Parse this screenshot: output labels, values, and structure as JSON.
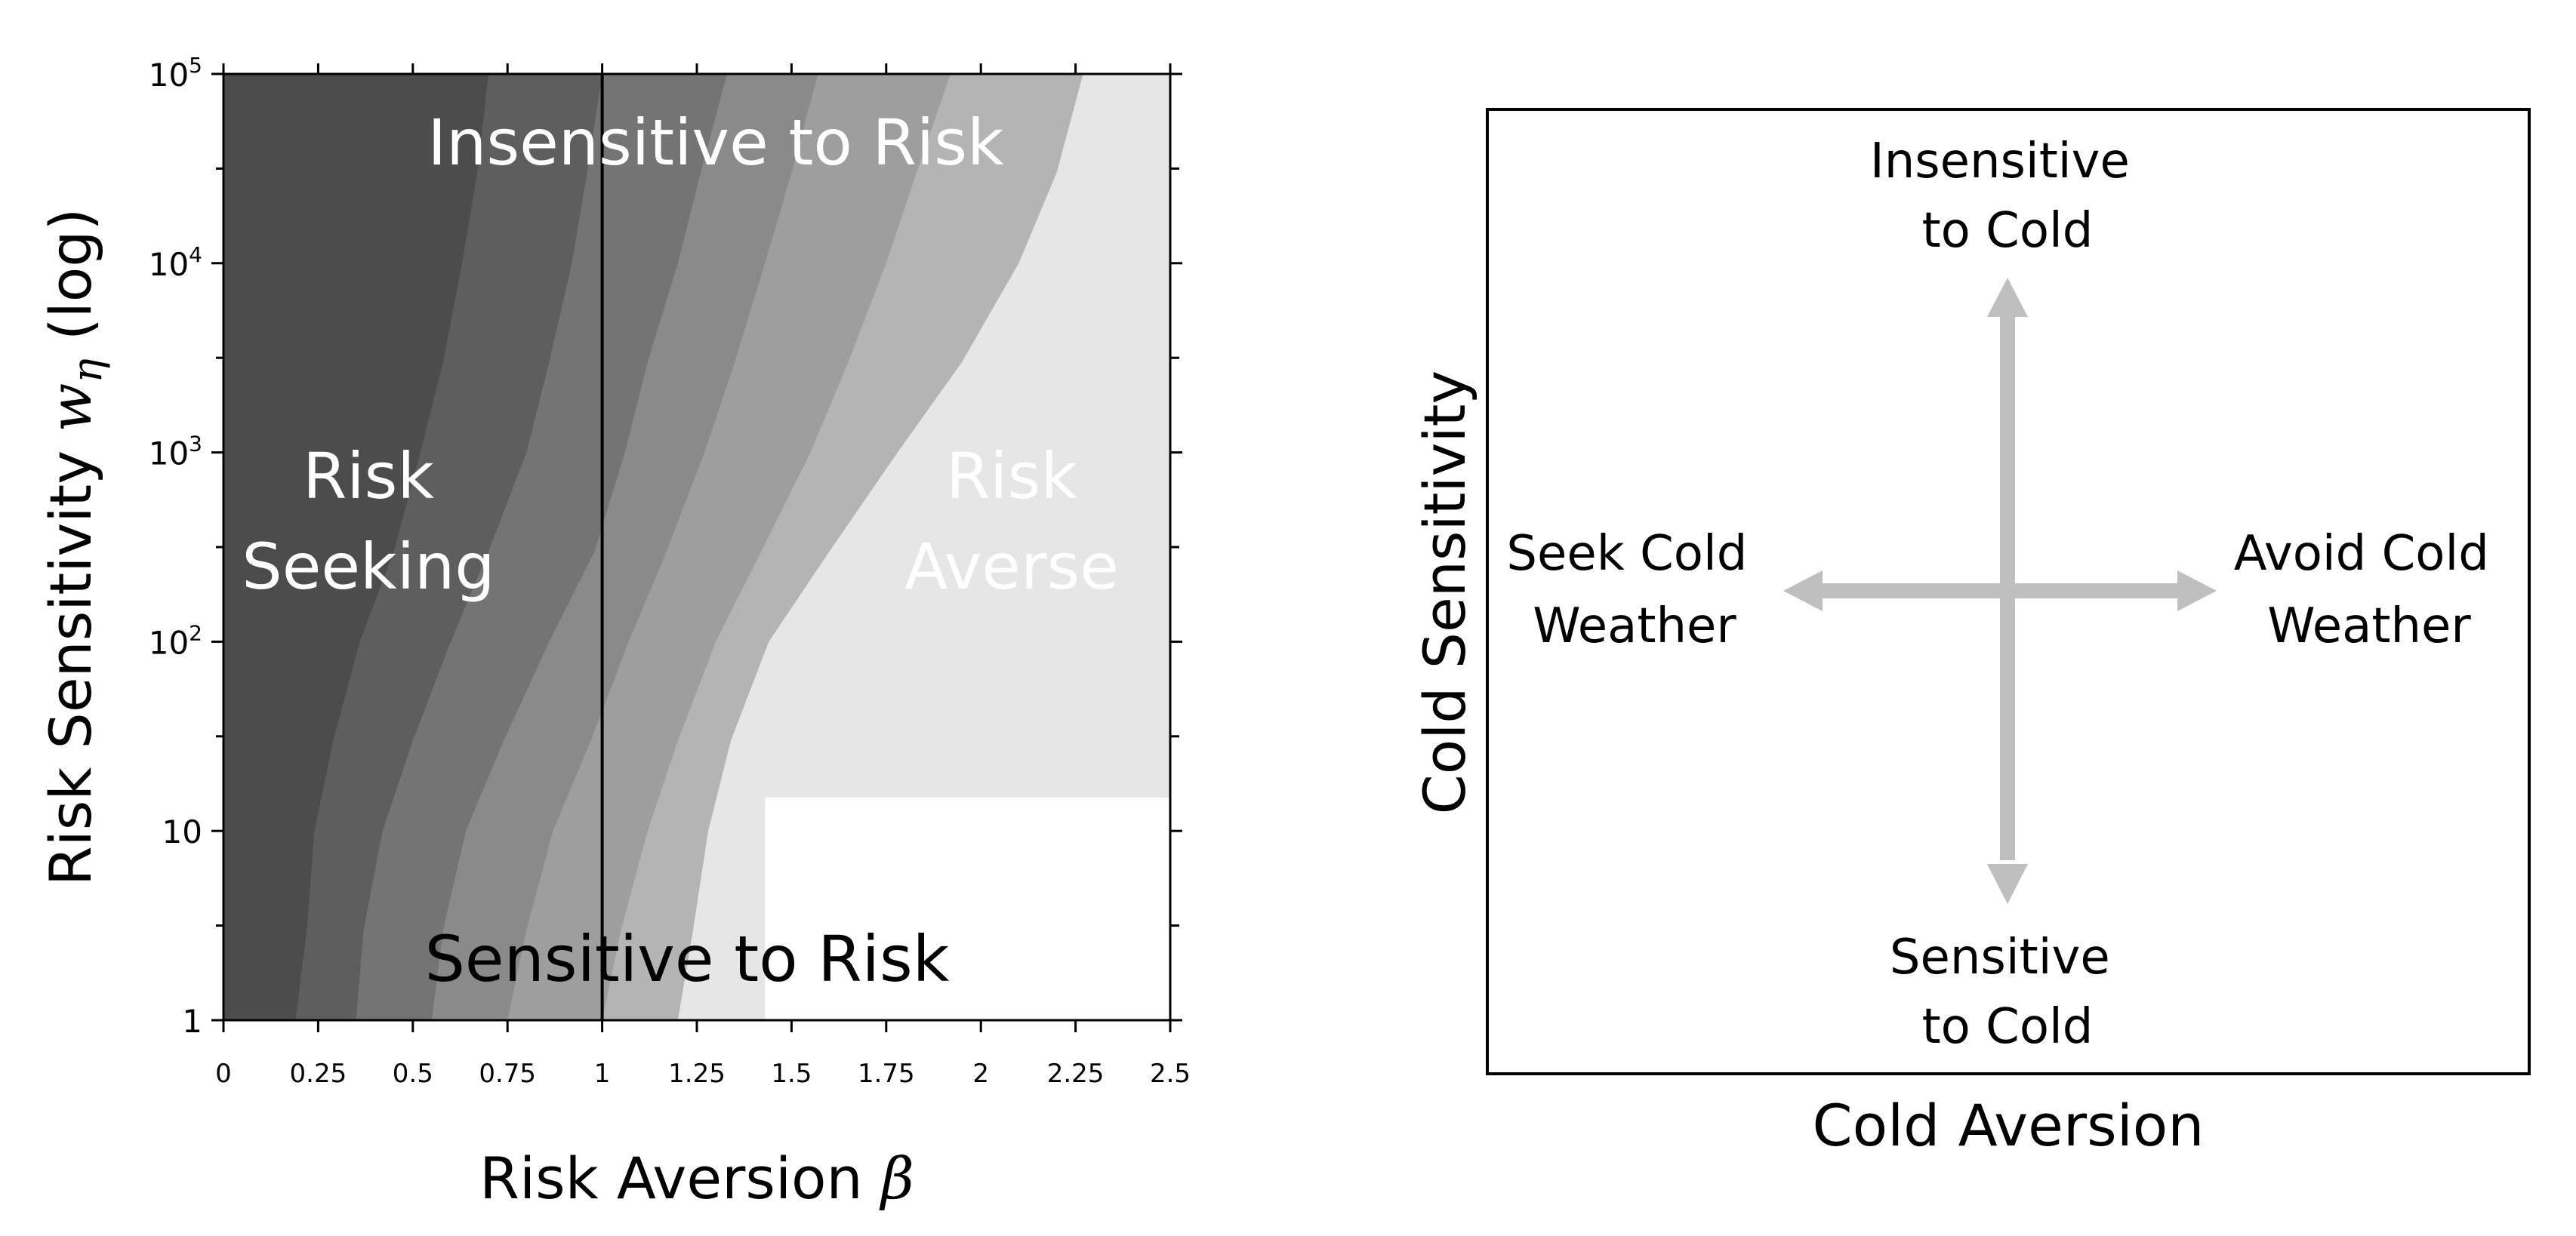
{
  "chart_data": [
    {
      "type": "heatmap",
      "xlabel": "Risk Aversion β",
      "xlabel_text": "Risk Aversion",
      "xlabel_symbol": "β",
      "ylabel_text": "Risk Sensitivity",
      "ylabel_symbol": "w",
      "ylabel_subscript": "η",
      "ylabel_suffix": " (log)",
      "xlim": [
        0,
        2.5
      ],
      "ylim": [
        1,
        100000
      ],
      "y_scale": "log",
      "x_ticks": [
        {
          "value": 0,
          "label": "0"
        },
        {
          "value": 0.25,
          "label": "0.25"
        },
        {
          "value": 0.5,
          "label": "0.5"
        },
        {
          "value": 0.75,
          "label": "0.75"
        },
        {
          "value": 1,
          "label": "1"
        },
        {
          "value": 1.25,
          "label": "1.25"
        },
        {
          "value": 1.5,
          "label": "1.5"
        },
        {
          "value": 1.75,
          "label": "1.75"
        },
        {
          "value": 2,
          "label": "2"
        },
        {
          "value": 2.25,
          "label": "2.25"
        },
        {
          "value": 2.5,
          "label": "2.5"
        }
      ],
      "y_ticks": [
        {
          "value": 1,
          "label": "1"
        },
        {
          "value": 10,
          "label": "10"
        },
        {
          "value": 100,
          "label": "10",
          "exp": "2"
        },
        {
          "value": 1000,
          "label": "10",
          "exp": "3"
        },
        {
          "value": 10000,
          "label": "10",
          "exp": "4"
        },
        {
          "value": 100000,
          "label": "10",
          "exp": "5"
        }
      ],
      "reference_line_x": 1,
      "color_levels": [
        "#3c3c3c",
        "#4c4c4c",
        "#5e5e5e",
        "#747474",
        "#8a8a8a",
        "#9e9e9e",
        "#b4b4b4",
        "#e6e6e6",
        "#ffffff"
      ],
      "region_boundaries": [
        {
          "level": 1,
          "points": [
            [
              0.0,
              1
            ],
            [
              0.0,
              100000
            ]
          ]
        },
        {
          "level": 2,
          "points": [
            [
              0.19,
              1
            ],
            [
              0.22,
              3
            ],
            [
              0.24,
              10
            ],
            [
              0.29,
              30
            ],
            [
              0.36,
              100
            ],
            [
              0.45,
              300
            ],
            [
              0.52,
              1000
            ],
            [
              0.58,
              3000
            ],
            [
              0.63,
              10000
            ],
            [
              0.67,
              30000
            ],
            [
              0.7,
              100000
            ]
          ]
        },
        {
          "level": 3,
          "points": [
            [
              0.35,
              1
            ],
            [
              0.37,
              3
            ],
            [
              0.42,
              10
            ],
            [
              0.5,
              30
            ],
            [
              0.6,
              100
            ],
            [
              0.7,
              300
            ],
            [
              0.8,
              1000
            ],
            [
              0.86,
              3000
            ],
            [
              0.92,
              10000
            ],
            [
              0.96,
              30000
            ],
            [
              1.0,
              100000
            ]
          ]
        },
        {
          "level": 4,
          "points": [
            [
              0.55,
              1
            ],
            [
              0.58,
              3
            ],
            [
              0.64,
              10
            ],
            [
              0.74,
              30
            ],
            [
              0.86,
              100
            ],
            [
              0.98,
              300
            ],
            [
              1.06,
              1000
            ],
            [
              1.12,
              3000
            ],
            [
              1.2,
              10000
            ],
            [
              1.26,
              30000
            ],
            [
              1.33,
              100000
            ]
          ]
        },
        {
          "level": 5,
          "points": [
            [
              0.75,
              1
            ],
            [
              0.8,
              3
            ],
            [
              0.87,
              10
            ],
            [
              0.97,
              30
            ],
            [
              1.07,
              100
            ],
            [
              1.17,
              300
            ],
            [
              1.27,
              1000
            ],
            [
              1.35,
              3000
            ],
            [
              1.43,
              10000
            ],
            [
              1.5,
              30000
            ],
            [
              1.57,
              100000
            ]
          ]
        },
        {
          "level": 6,
          "points": [
            [
              1.0,
              1
            ],
            [
              1.05,
              3
            ],
            [
              1.12,
              10
            ],
            [
              1.2,
              30
            ],
            [
              1.3,
              100
            ],
            [
              1.42,
              300
            ],
            [
              1.55,
              1000
            ],
            [
              1.65,
              3000
            ],
            [
              1.75,
              10000
            ],
            [
              1.83,
              30000
            ],
            [
              1.92,
              100000
            ]
          ]
        },
        {
          "level": 7,
          "points": [
            [
              1.2,
              1
            ],
            [
              1.24,
              3
            ],
            [
              1.28,
              10
            ],
            [
              1.34,
              30
            ],
            [
              1.44,
              100
            ],
            [
              1.6,
              300
            ],
            [
              1.78,
              1000
            ],
            [
              1.95,
              3000
            ],
            [
              2.1,
              10000
            ],
            [
              2.2,
              30000
            ],
            [
              2.27,
              100000
            ]
          ]
        }
      ],
      "light_region": {
        "x_start": 1.38,
        "y_low": 1,
        "y_high": 50
      },
      "white_region": {
        "x_start": 1.4,
        "y_low": 1,
        "y_high": 15
      },
      "annotations": [
        {
          "id": "insensitive",
          "lines": [
            "Insensitive to Risk"
          ],
          "color": "#ffffff"
        },
        {
          "id": "seeking",
          "lines": [
            "Risk",
            "Seeking"
          ],
          "color": "#ffffff"
        },
        {
          "id": "averse",
          "lines": [
            "Risk",
            "Averse"
          ],
          "color": "#ffffff"
        },
        {
          "id": "sensitive",
          "lines": [
            "Sensitive to Risk"
          ],
          "color": "#000000"
        }
      ]
    },
    {
      "type": "diagram",
      "xlabel": "Cold Aversion",
      "ylabel": "Cold Sensitivity",
      "arrow_color": "#bfbfbf",
      "labels": {
        "top": [
          "Insensitive",
          "to Cold"
        ],
        "bottom": [
          "Sensitive",
          "to Cold"
        ],
        "left": [
          "Seek Cold",
          "Weather"
        ],
        "right": [
          "Avoid Cold",
          "Weather"
        ]
      }
    }
  ]
}
